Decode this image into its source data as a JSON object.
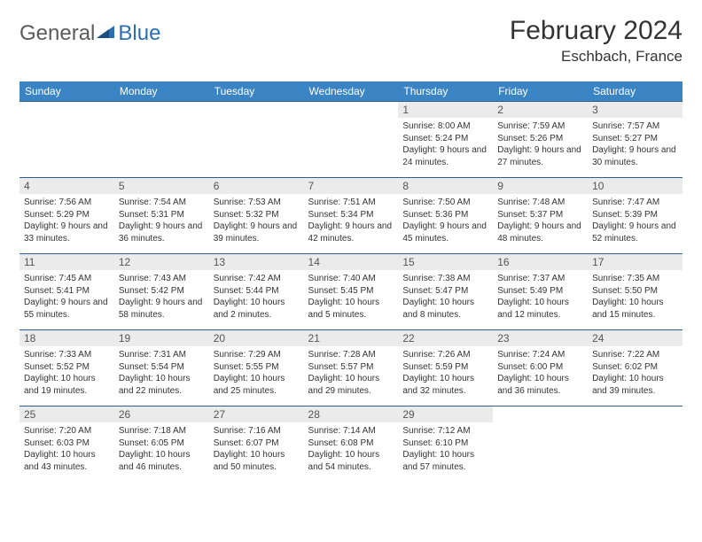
{
  "logo": {
    "text1": "General",
    "text2": "Blue"
  },
  "title": "February 2024",
  "location": "Eschbach, France",
  "theme": {
    "header_bg": "#3b84c4",
    "header_text": "#ffffff",
    "daynum_bg": "#ebebeb",
    "daynum_text": "#555555",
    "row_border": "#2f5d8c",
    "body_text": "#333333",
    "title_fontsize": 30,
    "location_fontsize": 17,
    "th_fontsize": 12,
    "daynum_fontsize": 12,
    "cell_fontsize": 10
  },
  "weekdays": [
    "Sunday",
    "Monday",
    "Tuesday",
    "Wednesday",
    "Thursday",
    "Friday",
    "Saturday"
  ],
  "weeks": [
    [
      null,
      null,
      null,
      null,
      {
        "d": "1",
        "sr": "8:00 AM",
        "ss": "5:24 PM",
        "dl": "9 hours and 24 minutes."
      },
      {
        "d": "2",
        "sr": "7:59 AM",
        "ss": "5:26 PM",
        "dl": "9 hours and 27 minutes."
      },
      {
        "d": "3",
        "sr": "7:57 AM",
        "ss": "5:27 PM",
        "dl": "9 hours and 30 minutes."
      }
    ],
    [
      {
        "d": "4",
        "sr": "7:56 AM",
        "ss": "5:29 PM",
        "dl": "9 hours and 33 minutes."
      },
      {
        "d": "5",
        "sr": "7:54 AM",
        "ss": "5:31 PM",
        "dl": "9 hours and 36 minutes."
      },
      {
        "d": "6",
        "sr": "7:53 AM",
        "ss": "5:32 PM",
        "dl": "9 hours and 39 minutes."
      },
      {
        "d": "7",
        "sr": "7:51 AM",
        "ss": "5:34 PM",
        "dl": "9 hours and 42 minutes."
      },
      {
        "d": "8",
        "sr": "7:50 AM",
        "ss": "5:36 PM",
        "dl": "9 hours and 45 minutes."
      },
      {
        "d": "9",
        "sr": "7:48 AM",
        "ss": "5:37 PM",
        "dl": "9 hours and 48 minutes."
      },
      {
        "d": "10",
        "sr": "7:47 AM",
        "ss": "5:39 PM",
        "dl": "9 hours and 52 minutes."
      }
    ],
    [
      {
        "d": "11",
        "sr": "7:45 AM",
        "ss": "5:41 PM",
        "dl": "9 hours and 55 minutes."
      },
      {
        "d": "12",
        "sr": "7:43 AM",
        "ss": "5:42 PM",
        "dl": "9 hours and 58 minutes."
      },
      {
        "d": "13",
        "sr": "7:42 AM",
        "ss": "5:44 PM",
        "dl": "10 hours and 2 minutes."
      },
      {
        "d": "14",
        "sr": "7:40 AM",
        "ss": "5:45 PM",
        "dl": "10 hours and 5 minutes."
      },
      {
        "d": "15",
        "sr": "7:38 AM",
        "ss": "5:47 PM",
        "dl": "10 hours and 8 minutes."
      },
      {
        "d": "16",
        "sr": "7:37 AM",
        "ss": "5:49 PM",
        "dl": "10 hours and 12 minutes."
      },
      {
        "d": "17",
        "sr": "7:35 AM",
        "ss": "5:50 PM",
        "dl": "10 hours and 15 minutes."
      }
    ],
    [
      {
        "d": "18",
        "sr": "7:33 AM",
        "ss": "5:52 PM",
        "dl": "10 hours and 19 minutes."
      },
      {
        "d": "19",
        "sr": "7:31 AM",
        "ss": "5:54 PM",
        "dl": "10 hours and 22 minutes."
      },
      {
        "d": "20",
        "sr": "7:29 AM",
        "ss": "5:55 PM",
        "dl": "10 hours and 25 minutes."
      },
      {
        "d": "21",
        "sr": "7:28 AM",
        "ss": "5:57 PM",
        "dl": "10 hours and 29 minutes."
      },
      {
        "d": "22",
        "sr": "7:26 AM",
        "ss": "5:59 PM",
        "dl": "10 hours and 32 minutes."
      },
      {
        "d": "23",
        "sr": "7:24 AM",
        "ss": "6:00 PM",
        "dl": "10 hours and 36 minutes."
      },
      {
        "d": "24",
        "sr": "7:22 AM",
        "ss": "6:02 PM",
        "dl": "10 hours and 39 minutes."
      }
    ],
    [
      {
        "d": "25",
        "sr": "7:20 AM",
        "ss": "6:03 PM",
        "dl": "10 hours and 43 minutes."
      },
      {
        "d": "26",
        "sr": "7:18 AM",
        "ss": "6:05 PM",
        "dl": "10 hours and 46 minutes."
      },
      {
        "d": "27",
        "sr": "7:16 AM",
        "ss": "6:07 PM",
        "dl": "10 hours and 50 minutes."
      },
      {
        "d": "28",
        "sr": "7:14 AM",
        "ss": "6:08 PM",
        "dl": "10 hours and 54 minutes."
      },
      {
        "d": "29",
        "sr": "7:12 AM",
        "ss": "6:10 PM",
        "dl": "10 hours and 57 minutes."
      },
      null,
      null
    ]
  ]
}
